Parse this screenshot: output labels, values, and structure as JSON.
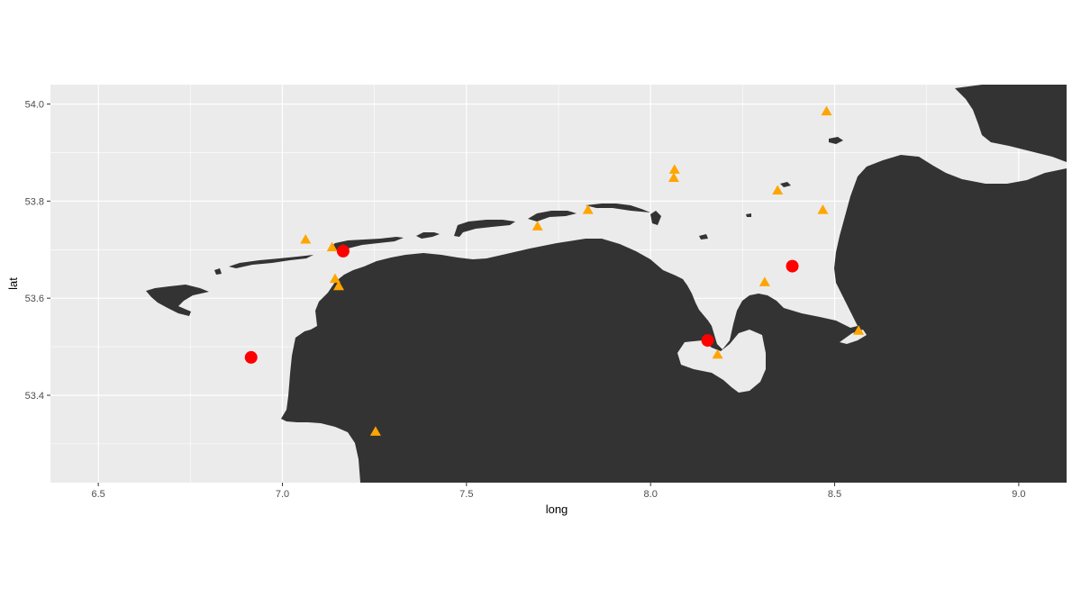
{
  "chart_data": {
    "type": "scatter",
    "xlabel": "long",
    "ylabel": "lat",
    "xlim": [
      6.37,
      9.13
    ],
    "ylim": [
      53.22,
      54.04
    ],
    "x_ticks": [
      "6.5",
      "7.0",
      "7.5",
      "8.0",
      "8.5",
      "9.0"
    ],
    "y_ticks": [
      "53.4",
      "53.6",
      "53.8",
      "54.0"
    ],
    "grid": true,
    "legend": "none",
    "colors": {
      "panel": "#ebebeb",
      "grid": "#ffffff",
      "land": "#333333",
      "circle": "#ff0000",
      "triangle": "#ffa500"
    },
    "series": [
      {
        "marker": "circle",
        "points": [
          {
            "x": 6.915,
            "y": 53.478
          },
          {
            "x": 7.165,
            "y": 53.697
          },
          {
            "x": 8.155,
            "y": 53.513
          },
          {
            "x": 8.385,
            "y": 53.666
          }
        ]
      },
      {
        "marker": "triangle",
        "points": [
          {
            "x": 7.063,
            "y": 53.721
          },
          {
            "x": 7.135,
            "y": 53.705
          },
          {
            "x": 7.165,
            "y": 53.7
          },
          {
            "x": 7.143,
            "y": 53.64
          },
          {
            "x": 7.153,
            "y": 53.625
          },
          {
            "x": 7.253,
            "y": 53.325
          },
          {
            "x": 7.693,
            "y": 53.748
          },
          {
            "x": 7.83,
            "y": 53.782
          },
          {
            "x": 8.065,
            "y": 53.865
          },
          {
            "x": 8.063,
            "y": 53.848
          },
          {
            "x": 8.182,
            "y": 53.484
          },
          {
            "x": 8.31,
            "y": 53.633
          },
          {
            "x": 8.345,
            "y": 53.822
          },
          {
            "x": 8.468,
            "y": 53.782
          },
          {
            "x": 8.478,
            "y": 53.985
          },
          {
            "x": 8.565,
            "y": 53.533
          }
        ]
      }
    ]
  }
}
